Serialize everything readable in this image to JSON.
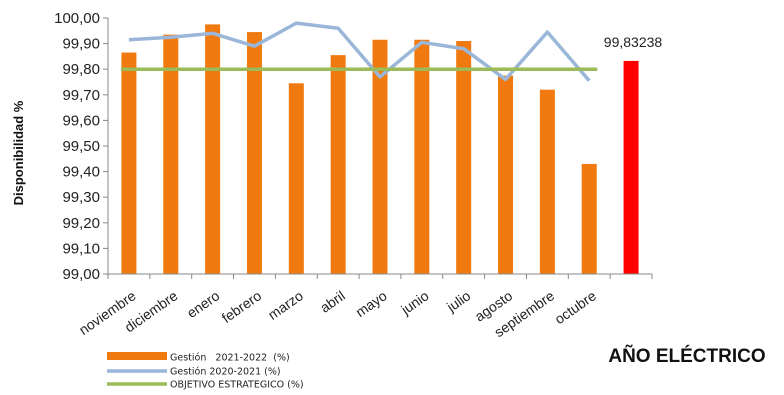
{
  "chart_data": {
    "type": "bar",
    "categories": [
      "noviembre",
      "diciembre",
      "enero",
      "febrero",
      "marzo",
      "abril",
      "mayo",
      "junio",
      "julio",
      "agosto",
      "septiembre",
      "octubre",
      ""
    ],
    "ylabel": "Disponibilidad  %",
    "xlabel": "AÑO ELÉCTRICO",
    "ylim": [
      99.0,
      100.0
    ],
    "yticks": [
      "99,00",
      "99,10",
      "99,20",
      "99,30",
      "99,40",
      "99,50",
      "99,60",
      "99,70",
      "99,80",
      "99,90",
      "100,00"
    ],
    "series": [
      {
        "name": "Gestión   2021-2022  (%)",
        "type": "bar",
        "color": "#f07a10",
        "values": [
          99.865,
          99.935,
          99.975,
          99.945,
          99.745,
          99.855,
          99.915,
          99.915,
          99.91,
          99.775,
          99.72,
          99.43,
          null
        ]
      },
      {
        "name": "Gestión 2020-2021 (%)",
        "type": "line",
        "color": "#9ab6d8",
        "values": [
          99.915,
          99.925,
          99.94,
          99.89,
          99.98,
          99.96,
          99.77,
          99.905,
          99.88,
          99.76,
          99.945,
          99.755,
          null
        ]
      },
      {
        "name": "OBJETIVO ESTRATEGICO (%)",
        "type": "line",
        "color": "#9bbb59",
        "values": [
          99.8,
          99.8,
          99.8,
          99.8,
          99.8,
          99.8,
          99.8,
          99.8,
          99.8,
          99.8,
          99.8,
          99.8,
          null
        ]
      },
      {
        "name": "",
        "type": "bar",
        "color": "#ff0000",
        "values": [
          null,
          null,
          null,
          null,
          null,
          null,
          null,
          null,
          null,
          null,
          null,
          null,
          99.83238
        ]
      }
    ],
    "data_label": "99,83238",
    "grid": false,
    "legend_position": "bottom-left"
  }
}
